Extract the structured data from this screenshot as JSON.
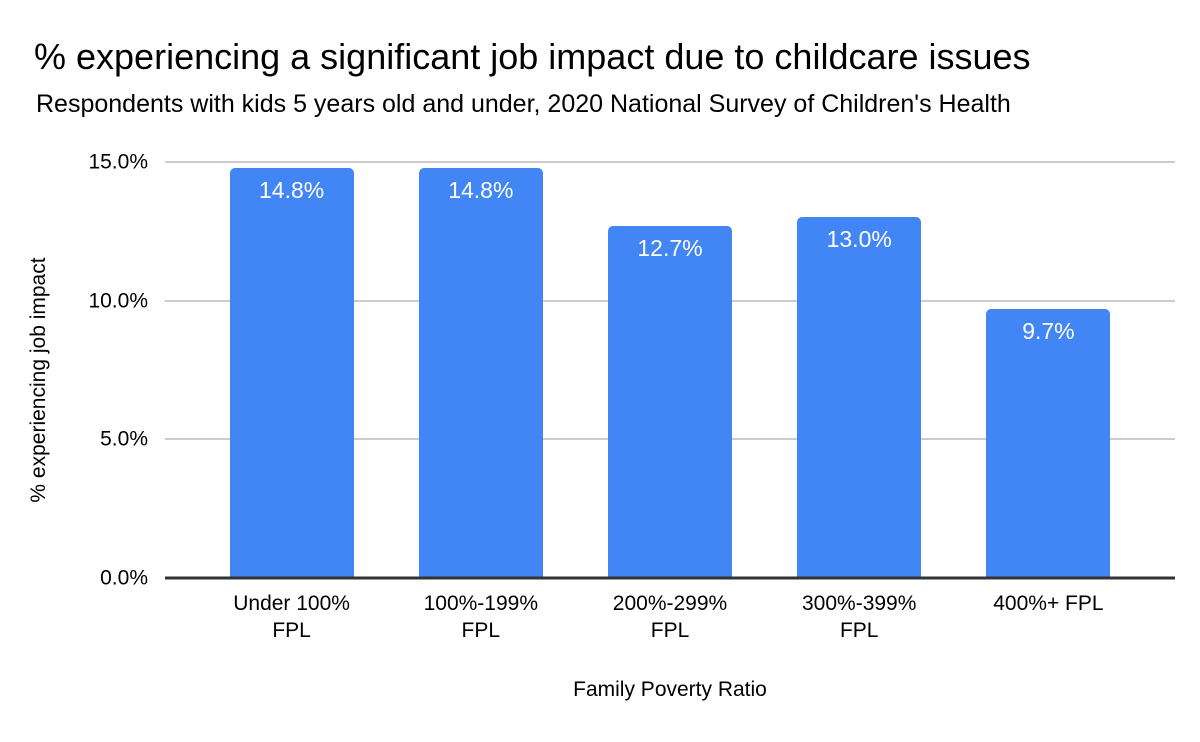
{
  "chart_data": {
    "type": "bar",
    "title": "% experiencing a significant job impact due to childcare issues",
    "subtitle": "Respondents with kids 5 years old and under, 2020 National Survey of Children's Health",
    "xlabel": "Family Poverty Ratio",
    "ylabel": "% experiencing job impact",
    "ylim": [
      0,
      15
    ],
    "grid": true,
    "legend": "none",
    "bar_color": "#4285f4",
    "value_label_color": "#ffffff",
    "gridline_color": "#cccccc",
    "axis_line_color": "#333333",
    "categories": [
      "Under 100%\nFPL",
      "100%-199%\nFPL",
      "200%-299%\nFPL",
      "300%-399%\nFPL",
      "400%+ FPL"
    ],
    "values": [
      14.8,
      14.8,
      12.7,
      13.0,
      9.7
    ],
    "value_labels": [
      "14.8%",
      "14.8%",
      "12.7%",
      "13.0%",
      "9.7%"
    ],
    "yticks": [
      {
        "label": "0.0%",
        "value": 0
      },
      {
        "label": "5.0%",
        "value": 5
      },
      {
        "label": "10.0%",
        "value": 10
      },
      {
        "label": "15.0%",
        "value": 15
      }
    ]
  }
}
